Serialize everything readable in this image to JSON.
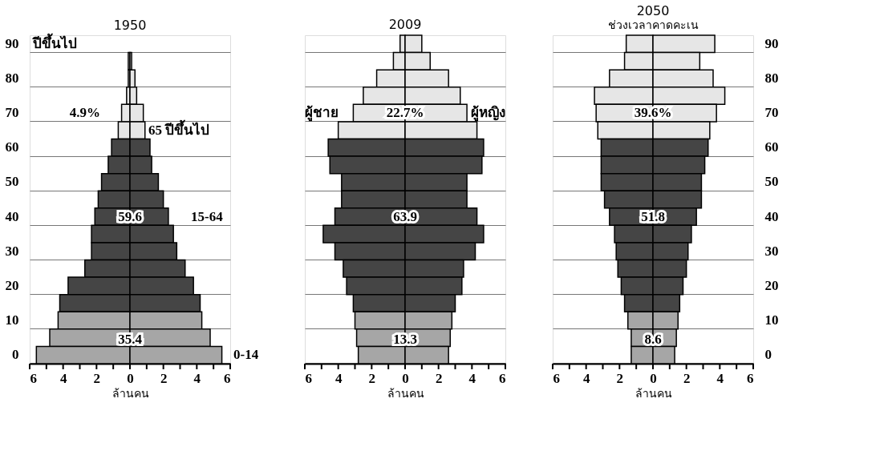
{
  "chart_data": [
    {
      "type": "bar",
      "orientation": "horizontal",
      "stacked": true,
      "title": "1950",
      "xlabel": "ล้านคน",
      "grid": "y",
      "categories": [
        "90",
        null,
        "80",
        null,
        "70",
        null,
        "60",
        null,
        "50",
        null,
        "40",
        null,
        "30",
        null,
        "20",
        null,
        "10",
        null,
        "0"
      ],
      "xlim": [
        -6,
        6
      ],
      "xticks": [
        {
          "value": -6,
          "label": "6"
        },
        {
          "value": -5,
          "label": null
        },
        {
          "value": -4,
          "label": "4"
        },
        {
          "value": -3,
          "label": null
        },
        {
          "value": -2,
          "label": "2"
        },
        {
          "value": -1,
          "label": null
        },
        0,
        {
          "value": 1,
          "label": null
        },
        2,
        {
          "value": 3,
          "label": null
        },
        4,
        {
          "value": 5,
          "label": null
        },
        6
      ],
      "series": [
        {
          "colors": [
            "#e6e6e6",
            "#e6e6e6",
            "#e6e6e6",
            "#e6e6e6",
            "#e6e6e6",
            "#e6e6e6",
            "#454545",
            "#454545",
            "#454545",
            "#454545",
            "#454545",
            "#454545",
            "#454545",
            "#454545",
            "#454545",
            "#454545",
            "#a6a6a6",
            "#a6a6a6",
            "#a6a6a6"
          ],
          "values": [
            null,
            -0.1,
            -0.1,
            -0.2,
            -0.5,
            -0.7,
            -1.1,
            -1.3,
            -1.7,
            -1.9,
            -2.1,
            -2.3,
            -2.3,
            -2.7,
            -3.7,
            -4.2,
            -4.3,
            -4.8,
            -5.6
          ]
        },
        {
          "colors": [
            "#e6e6e6",
            "#e6e6e6",
            "#e6e6e6",
            "#e6e6e6",
            "#e6e6e6",
            "#e6e6e6",
            "#454545",
            "#454545",
            "#454545",
            "#454545",
            "#454545",
            "#454545",
            "#454545",
            "#454545",
            "#454545",
            "#454545",
            "#a6a6a6",
            "#a6a6a6",
            "#a6a6a6"
          ],
          "values": [
            null,
            0.1,
            0.3,
            0.4,
            0.8,
            0.9,
            1.2,
            1.3,
            1.7,
            2.0,
            2.3,
            2.6,
            2.8,
            3.3,
            3.8,
            4.2,
            4.3,
            4.8,
            5.5
          ]
        }
      ],
      "annotations": [
        "ปีขึ้นไป",
        "4.9%",
        "65 ปีขึ้นไป",
        "59.6",
        "15-64",
        "35.4",
        "0-14"
      ]
    },
    {
      "type": "bar",
      "orientation": "horizontal",
      "stacked": true,
      "title": "2009",
      "xlabel": "ล้านคน",
      "grid": "y",
      "tick_labels": "x",
      "categories": [
        "90",
        null,
        "80",
        null,
        "70",
        null,
        "60",
        null,
        "50",
        null,
        "40",
        null,
        "30",
        null,
        "20",
        null,
        "10",
        null,
        "0"
      ],
      "xlim": [
        -6,
        6
      ],
      "xticks": [
        {
          "value": -6,
          "label": "6"
        },
        {
          "value": -5,
          "label": null
        },
        {
          "value": -4,
          "label": "4"
        },
        {
          "value": -3,
          "label": null
        },
        {
          "value": -2,
          "label": "2"
        },
        {
          "value": -1,
          "label": null
        },
        0,
        {
          "value": 1,
          "label": null
        },
        2,
        {
          "value": 3,
          "label": null
        },
        4,
        {
          "value": 5,
          "label": null
        },
        6
      ],
      "series": [
        {
          "colors": [
            "#e6e6e6",
            "#e6e6e6",
            "#e6e6e6",
            "#e6e6e6",
            "#e6e6e6",
            "#e6e6e6",
            "#454545",
            "#454545",
            "#454545",
            "#454545",
            "#454545",
            "#454545",
            "#454545",
            "#454545",
            "#454545",
            "#454545",
            "#a6a6a6",
            "#a6a6a6",
            "#a6a6a6"
          ],
          "values": [
            -0.3,
            -0.7,
            -1.7,
            -2.5,
            -3.1,
            -4.0,
            -4.6,
            -4.5,
            -3.8,
            -3.8,
            -4.2,
            -4.9,
            -4.2,
            -3.7,
            -3.5,
            -3.1,
            -3.0,
            -2.9,
            -2.8
          ]
        },
        {
          "colors": [
            "#e6e6e6",
            "#e6e6e6",
            "#e6e6e6",
            "#e6e6e6",
            "#e6e6e6",
            "#e6e6e6",
            "#454545",
            "#454545",
            "#454545",
            "#454545",
            "#454545",
            "#454545",
            "#454545",
            "#454545",
            "#454545",
            "#454545",
            "#a6a6a6",
            "#a6a6a6",
            "#a6a6a6"
          ],
          "values": [
            1.0,
            1.5,
            2.6,
            3.3,
            3.7,
            4.3,
            4.7,
            4.6,
            3.7,
            3.7,
            4.3,
            4.7,
            4.2,
            3.5,
            3.4,
            3.0,
            2.8,
            2.7,
            2.6
          ]
        }
      ],
      "annotations": [
        "ผู้ชาย",
        "22.7%",
        "ผู้หญิง",
        "63.9",
        "13.3"
      ]
    },
    {
      "type": "bar",
      "orientation": "horizontal",
      "stacked": true,
      "title": "2050",
      "subtitle": "ช่วงเวลาคาดคะเน",
      "xlabel": "ล้านคน",
      "grid": "y",
      "categories": [
        "90",
        null,
        "80",
        null,
        "70",
        null,
        "60",
        null,
        "50",
        null,
        "40",
        null,
        "30",
        null,
        "20",
        null,
        "10",
        null,
        "0"
      ],
      "xlim": [
        -6,
        6
      ],
      "xticks": [
        {
          "value": -6,
          "label": "6"
        },
        {
          "value": -5,
          "label": null
        },
        {
          "value": -4,
          "label": "4"
        },
        {
          "value": -3,
          "label": null
        },
        {
          "value": -2,
          "label": "2"
        },
        {
          "value": -1,
          "label": null
        },
        0,
        {
          "value": 1,
          "label": null
        },
        2,
        {
          "value": 3,
          "label": null
        },
        4,
        {
          "value": 5,
          "label": null
        },
        6
      ],
      "series": [
        {
          "colors": [
            "#e6e6e6",
            "#e6e6e6",
            "#e6e6e6",
            "#e6e6e6",
            "#e6e6e6",
            "#e6e6e6",
            "#454545",
            "#454545",
            "#454545",
            "#454545",
            "#454545",
            "#454545",
            "#454545",
            "#454545",
            "#454545",
            "#454545",
            "#a6a6a6",
            "#a6a6a6",
            "#a6a6a6"
          ],
          "values": [
            -1.6,
            -1.7,
            -2.6,
            -3.5,
            -3.4,
            -3.3,
            -3.1,
            -3.1,
            -3.1,
            -2.9,
            -2.6,
            -2.3,
            -2.2,
            -2.1,
            -1.9,
            -1.7,
            -1.5,
            -1.3,
            -1.3
          ]
        },
        {
          "colors": [
            "#e6e6e6",
            "#e6e6e6",
            "#e6e6e6",
            "#e6e6e6",
            "#e6e6e6",
            "#e6e6e6",
            "#454545",
            "#454545",
            "#454545",
            "#454545",
            "#454545",
            "#454545",
            "#454545",
            "#454545",
            "#454545",
            "#454545",
            "#a6a6a6",
            "#a6a6a6",
            "#a6a6a6"
          ],
          "values": [
            3.7,
            2.8,
            3.6,
            4.3,
            3.8,
            3.4,
            3.3,
            3.1,
            2.9,
            2.9,
            2.6,
            2.3,
            2.1,
            2.0,
            1.8,
            1.6,
            1.5,
            1.4,
            1.3
          ]
        }
      ],
      "annotations": [
        "39.6%",
        "51.8",
        "8.6"
      ]
    }
  ]
}
